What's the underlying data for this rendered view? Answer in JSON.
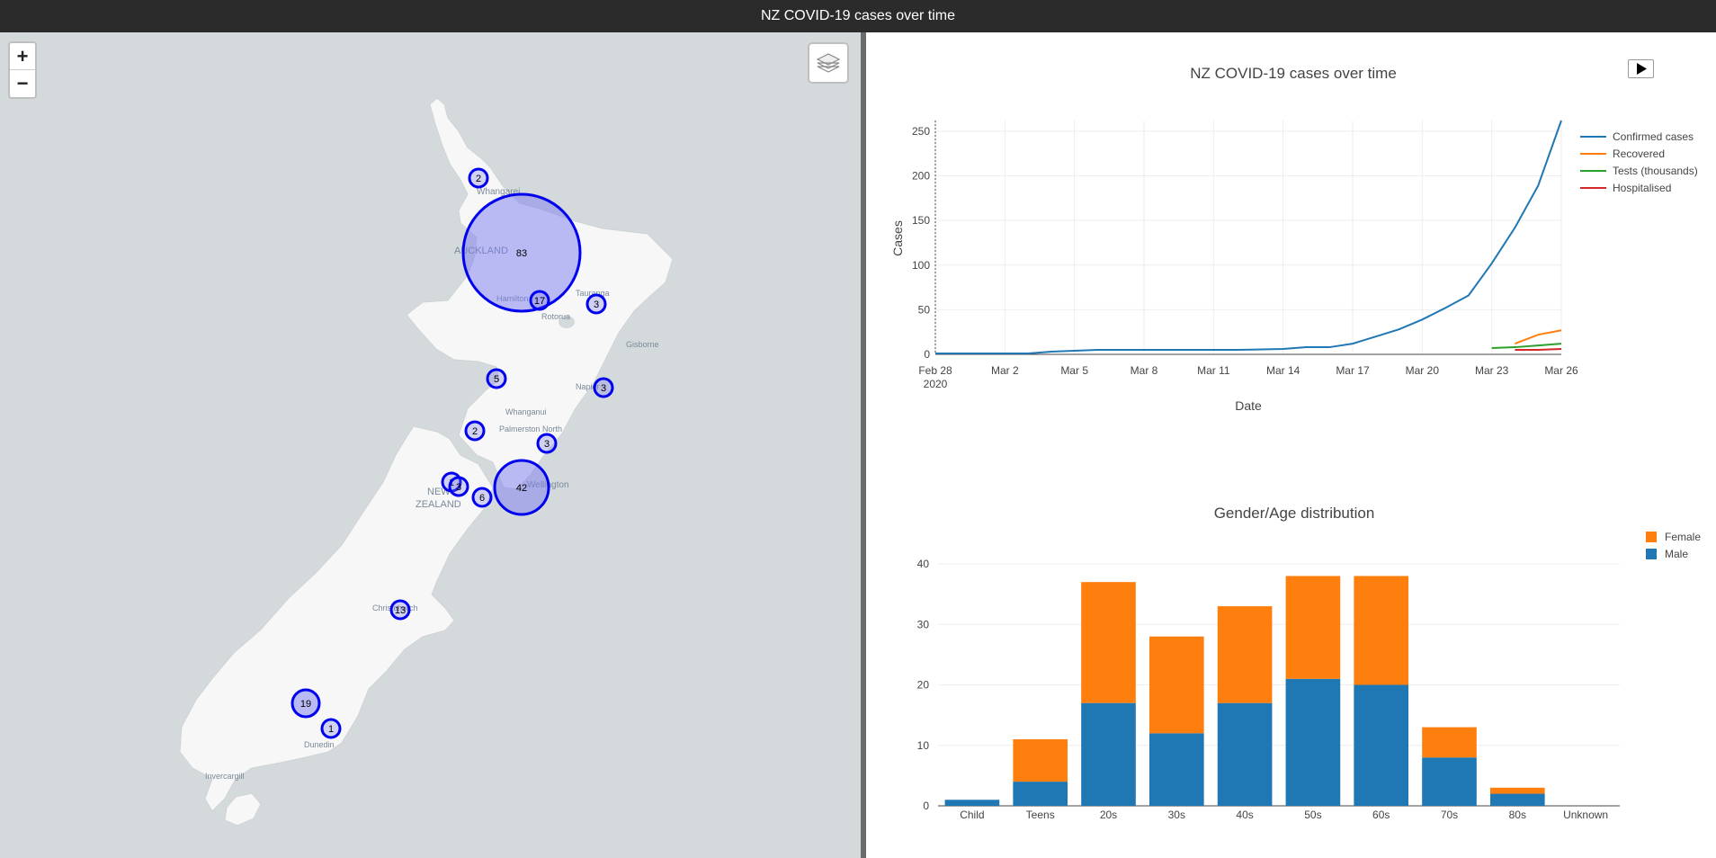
{
  "header": {
    "title": "NZ COVID-19 cases over time"
  },
  "map": {
    "zoom_in_label": "+",
    "zoom_out_label": "−",
    "place_labels": [
      {
        "name": "Whangarei"
      },
      {
        "name": "AUCKLAND"
      },
      {
        "name": "Hamilton"
      },
      {
        "name": "Tauranga"
      },
      {
        "name": "Rotorua"
      },
      {
        "name": "Gisborne"
      },
      {
        "name": "Napier"
      },
      {
        "name": "Whanganui"
      },
      {
        "name": "Palmerston North"
      },
      {
        "name": "Wellington"
      },
      {
        "name": "NEW"
      },
      {
        "name": "ZEALAND"
      },
      {
        "name": "Christchurch"
      },
      {
        "name": "Dunedin"
      },
      {
        "name": "Invercargill"
      }
    ],
    "clusters": [
      {
        "count": "2"
      },
      {
        "count": "83"
      },
      {
        "count": "17"
      },
      {
        "count": "3"
      },
      {
        "count": "5"
      },
      {
        "count": "3"
      },
      {
        "count": "2"
      },
      {
        "count": "3"
      },
      {
        "count": "1"
      },
      {
        "count": "3"
      },
      {
        "count": "6"
      },
      {
        "count": "42"
      },
      {
        "count": "13"
      },
      {
        "count": "19"
      },
      {
        "count": "1"
      }
    ],
    "colors": {
      "cluster_stroke": "#0000ee",
      "cluster_fill": "#7b7bf0",
      "land": "#f7f7f7",
      "water": "#d4dadc"
    }
  },
  "chart_data": [
    {
      "type": "line",
      "title": "NZ COVID-19 cases over time",
      "xlabel": "Date",
      "ylabel": "Cases",
      "x_ticks": [
        "Feb 28",
        "Mar 2",
        "Mar 5",
        "Mar 8",
        "Mar 11",
        "Mar 14",
        "Mar 17",
        "Mar 20",
        "Mar 23",
        "Mar 26"
      ],
      "x_tick_year": "2020",
      "ylim": [
        0,
        260
      ],
      "y_ticks": [
        0,
        50,
        100,
        150,
        200,
        250
      ],
      "xlim": [
        "2020-02-28",
        "2020-03-26"
      ],
      "legend_position": "top-right",
      "series": [
        {
          "name": "Confirmed cases",
          "color": "#1f77b4",
          "x": [
            "2020-02-28",
            "2020-03-01",
            "2020-03-03",
            "2020-03-04",
            "2020-03-06",
            "2020-03-08",
            "2020-03-10",
            "2020-03-12",
            "2020-03-14",
            "2020-03-15",
            "2020-03-16",
            "2020-03-17",
            "2020-03-18",
            "2020-03-19",
            "2020-03-20",
            "2020-03-21",
            "2020-03-22",
            "2020-03-23",
            "2020-03-24",
            "2020-03-25",
            "2020-03-26"
          ],
          "y": [
            1,
            1,
            1,
            3,
            5,
            5,
            5,
            5,
            6,
            8,
            8,
            12,
            20,
            28,
            39,
            52,
            66,
            102,
            142,
            189,
            262
          ]
        },
        {
          "name": "Recovered",
          "color": "#ff7f0e",
          "x": [
            "2020-03-24",
            "2020-03-25",
            "2020-03-26"
          ],
          "y": [
            12,
            22,
            27
          ]
        },
        {
          "name": "Tests (thousands)",
          "color": "#2ca02c",
          "x": [
            "2020-03-23",
            "2020-03-24",
            "2020-03-25",
            "2020-03-26"
          ],
          "y": [
            7,
            8,
            10,
            12
          ]
        },
        {
          "name": "Hospitalised",
          "color": "#d62728",
          "x": [
            "2020-03-24",
            "2020-03-25",
            "2020-03-26"
          ],
          "y": [
            5,
            5,
            6
          ]
        }
      ]
    },
    {
      "type": "bar",
      "stacked": true,
      "title": "Gender/Age distribution",
      "categories": [
        "Child",
        "Teens",
        "20s",
        "30s",
        "40s",
        "50s",
        "60s",
        "70s",
        "80s",
        "Unknown"
      ],
      "ylim": [
        0,
        40
      ],
      "y_ticks": [
        0,
        10,
        20,
        30,
        40
      ],
      "legend_position": "top-right",
      "series": [
        {
          "name": "Female",
          "color": "#ff7f0e",
          "values": [
            0,
            7,
            20,
            16,
            16,
            17,
            18,
            5,
            1,
            0
          ]
        },
        {
          "name": "Male",
          "color": "#1f77b4",
          "values": [
            1,
            4,
            17,
            12,
            17,
            21,
            20,
            8,
            2,
            0
          ]
        }
      ]
    }
  ]
}
